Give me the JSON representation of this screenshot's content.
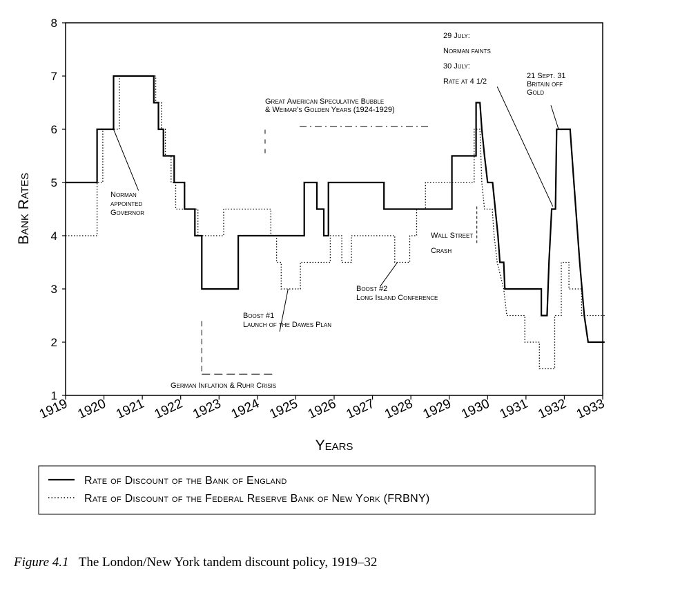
{
  "caption": {
    "figure_label": "Figure 4.1",
    "text": "The London/New York tandem discount policy, 1919–32"
  },
  "chart_data": {
    "type": "line",
    "xlabel": "Years",
    "ylabel": "Bank Rates",
    "xlim": [
      1919,
      1933
    ],
    "ylim": [
      1,
      8
    ],
    "x_ticks": [
      "1919",
      "1920",
      "1921",
      "1922",
      "1923",
      "1924",
      "1925",
      "1926",
      "1927",
      "1928",
      "1929",
      "1930",
      "1931",
      "1932",
      "1933"
    ],
    "y_ticks": [
      "1",
      "2",
      "3",
      "4",
      "5",
      "6",
      "7",
      "8"
    ],
    "grid": false,
    "legend_position": "bottom",
    "series": [
      {
        "name": "Rate of Discount of the Bank of England",
        "style": "solid",
        "color": "#000000",
        "points": [
          [
            1919.0,
            5.0
          ],
          [
            1919.82,
            5.0
          ],
          [
            1919.82,
            6.0
          ],
          [
            1920.25,
            6.0
          ],
          [
            1920.25,
            7.0
          ],
          [
            1921.3,
            7.0
          ],
          [
            1921.3,
            6.5
          ],
          [
            1921.42,
            6.5
          ],
          [
            1921.42,
            6.0
          ],
          [
            1921.55,
            6.0
          ],
          [
            1921.55,
            5.5
          ],
          [
            1921.83,
            5.5
          ],
          [
            1921.83,
            5.0
          ],
          [
            1922.1,
            5.0
          ],
          [
            1922.1,
            4.5
          ],
          [
            1922.37,
            4.5
          ],
          [
            1922.37,
            4.0
          ],
          [
            1922.55,
            4.0
          ],
          [
            1922.55,
            3.0
          ],
          [
            1923.5,
            3.0
          ],
          [
            1923.5,
            4.0
          ],
          [
            1925.22,
            4.0
          ],
          [
            1925.22,
            5.0
          ],
          [
            1925.55,
            5.0
          ],
          [
            1925.55,
            4.5
          ],
          [
            1925.73,
            4.5
          ],
          [
            1925.73,
            4.0
          ],
          [
            1925.85,
            4.0
          ],
          [
            1925.85,
            5.0
          ],
          [
            1927.3,
            5.0
          ],
          [
            1927.3,
            4.5
          ],
          [
            1929.07,
            4.5
          ],
          [
            1929.07,
            5.5
          ],
          [
            1929.7,
            5.5
          ],
          [
            1929.7,
            6.5
          ],
          [
            1929.8,
            6.5
          ],
          [
            1929.85,
            6.0
          ],
          [
            1929.92,
            5.5
          ],
          [
            1930.0,
            5.0
          ],
          [
            1930.13,
            5.0
          ],
          [
            1930.2,
            4.5
          ],
          [
            1930.27,
            4.0
          ],
          [
            1930.32,
            3.5
          ],
          [
            1930.42,
            3.5
          ],
          [
            1930.45,
            3.0
          ],
          [
            1931.4,
            3.0
          ],
          [
            1931.4,
            2.5
          ],
          [
            1931.55,
            2.5
          ],
          [
            1931.6,
            3.5
          ],
          [
            1931.67,
            4.5
          ],
          [
            1931.77,
            4.5
          ],
          [
            1931.8,
            6.0
          ],
          [
            1932.15,
            6.0
          ],
          [
            1932.25,
            5.0
          ],
          [
            1932.35,
            4.0
          ],
          [
            1932.4,
            3.5
          ],
          [
            1932.52,
            2.5
          ],
          [
            1932.62,
            2.0
          ],
          [
            1933.05,
            2.0
          ]
        ]
      },
      {
        "name": "Rate of Discount of the Federal Reserve Bank of New York (FRBNY)",
        "style": "dotted",
        "color": "#000000",
        "points": [
          [
            1919.0,
            4.0
          ],
          [
            1919.82,
            4.0
          ],
          [
            1919.82,
            5.0
          ],
          [
            1919.97,
            5.0
          ],
          [
            1919.97,
            6.0
          ],
          [
            1920.4,
            6.0
          ],
          [
            1920.4,
            7.0
          ],
          [
            1921.35,
            7.0
          ],
          [
            1921.35,
            6.5
          ],
          [
            1921.5,
            6.5
          ],
          [
            1921.5,
            6.0
          ],
          [
            1921.6,
            6.0
          ],
          [
            1921.6,
            5.5
          ],
          [
            1921.75,
            5.5
          ],
          [
            1921.75,
            5.0
          ],
          [
            1921.87,
            5.0
          ],
          [
            1921.87,
            4.5
          ],
          [
            1922.45,
            4.5
          ],
          [
            1922.45,
            4.0
          ],
          [
            1923.12,
            4.0
          ],
          [
            1923.12,
            4.5
          ],
          [
            1924.35,
            4.5
          ],
          [
            1924.35,
            4.0
          ],
          [
            1924.5,
            4.0
          ],
          [
            1924.5,
            3.5
          ],
          [
            1924.62,
            3.5
          ],
          [
            1924.62,
            3.0
          ],
          [
            1925.12,
            3.0
          ],
          [
            1925.12,
            3.5
          ],
          [
            1925.9,
            3.5
          ],
          [
            1925.9,
            4.0
          ],
          [
            1926.2,
            4.0
          ],
          [
            1926.2,
            3.5
          ],
          [
            1926.45,
            3.5
          ],
          [
            1926.45,
            4.0
          ],
          [
            1927.58,
            4.0
          ],
          [
            1927.58,
            3.5
          ],
          [
            1927.97,
            3.5
          ],
          [
            1927.97,
            4.0
          ],
          [
            1928.15,
            4.0
          ],
          [
            1928.15,
            4.5
          ],
          [
            1928.38,
            4.5
          ],
          [
            1928.38,
            5.0
          ],
          [
            1929.65,
            5.0
          ],
          [
            1929.65,
            6.0
          ],
          [
            1929.8,
            6.0
          ],
          [
            1929.85,
            5.0
          ],
          [
            1929.92,
            4.5
          ],
          [
            1930.12,
            4.5
          ],
          [
            1930.17,
            4.0
          ],
          [
            1930.25,
            3.5
          ],
          [
            1930.42,
            3.0
          ],
          [
            1930.5,
            2.5
          ],
          [
            1930.97,
            2.5
          ],
          [
            1930.97,
            2.0
          ],
          [
            1931.35,
            2.0
          ],
          [
            1931.35,
            1.5
          ],
          [
            1931.75,
            1.5
          ],
          [
            1931.75,
            2.5
          ],
          [
            1931.92,
            2.5
          ],
          [
            1931.92,
            3.5
          ],
          [
            1932.12,
            3.5
          ],
          [
            1932.12,
            3.0
          ],
          [
            1932.45,
            3.0
          ],
          [
            1932.45,
            2.5
          ],
          [
            1933.05,
            2.5
          ]
        ]
      }
    ],
    "annotations": [
      {
        "lines": [
          "Norman",
          "appointed",
          "Governor"
        ]
      },
      {
        "lines": [
          "Great American Speculative Bubble",
          "& Weimar's Golden Years (1924-1929)"
        ]
      },
      {
        "lines": [
          "29 July:"
        ]
      },
      {
        "lines": [
          "Norman faints"
        ]
      },
      {
        "lines": [
          "30 July:"
        ]
      },
      {
        "lines": [
          "Rate at 4 1/2"
        ]
      },
      {
        "lines": [
          "21 Sept. 31",
          "Britain off",
          "Gold"
        ]
      },
      {
        "lines": [
          "Wall Street"
        ]
      },
      {
        "lines": [
          "Crash"
        ]
      },
      {
        "lines": [
          "Boost #1",
          "Launch of the Dawes Plan"
        ]
      },
      {
        "lines": [
          "Boost #2",
          "Long Island Conference"
        ]
      },
      {
        "lines": [
          "German Inflation & Ruhr Crisis"
        ]
      }
    ]
  }
}
